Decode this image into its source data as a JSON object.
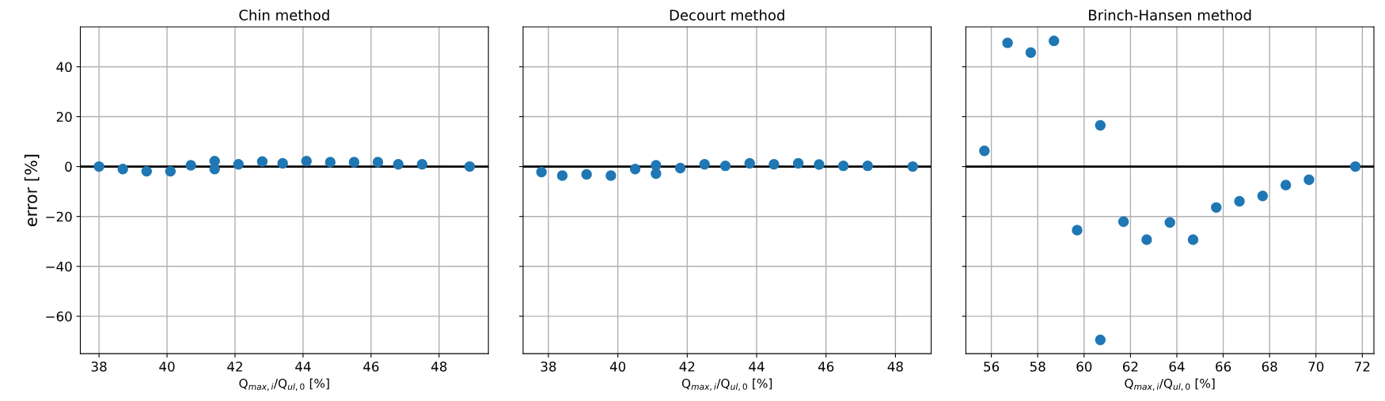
{
  "chart_data": [
    {
      "type": "scatter",
      "title": "Chin method",
      "xlabel": "Q$_{max,i}$/Q$_{ul,0}$ [%]",
      "ylabel": "error [%]",
      "x": [
        38.0,
        38.7,
        39.4,
        40.1,
        40.7,
        41.4,
        41.4,
        42.1,
        42.8,
        43.4,
        44.1,
        44.8,
        45.5,
        46.2,
        46.8,
        47.5,
        48.9
      ],
      "series": [
        {
          "color": "#1f77b4",
          "values": [
            0,
            -1.0,
            -1.9,
            -1.9,
            0.5,
            2.2,
            -1.0,
            0.9,
            2.0,
            1.3,
            2.2,
            1.8,
            1.8,
            1.8,
            0.9,
            0.9,
            0
          ]
        }
      ],
      "xlim": [
        37.45,
        49.45
      ],
      "xticks": [
        38,
        40,
        42,
        44,
        46,
        48
      ],
      "ylim": [
        -75,
        56
      ],
      "yticks": [
        -60,
        -40,
        -20,
        0,
        20,
        40
      ],
      "ref_lines": [
        {
          "axis": "y",
          "value": 0,
          "color": "#000000"
        }
      ],
      "grid": true,
      "marker": "circle"
    },
    {
      "type": "scatter",
      "title": "Decourt method",
      "xlabel": "Q$_{max,i}$/Q$_{ul,0}$ [%]",
      "x": [
        37.8,
        38.4,
        39.1,
        39.8,
        40.5,
        41.1,
        41.1,
        41.8,
        42.5,
        43.1,
        43.8,
        44.5,
        45.2,
        45.8,
        46.5,
        47.2,
        48.5
      ],
      "series": [
        {
          "color": "#1f77b4",
          "values": [
            -2.2,
            -3.6,
            -3.1,
            -3.6,
            -1.0,
            0.5,
            -2.8,
            -0.6,
            0.9,
            0.3,
            1.3,
            0.9,
            1.3,
            0.8,
            0.3,
            0.3,
            0
          ]
        }
      ],
      "xlim": [
        37.27,
        49.03
      ],
      "xticks": [
        38,
        40,
        42,
        44,
        46,
        48
      ],
      "ylim": [
        -75,
        56
      ],
      "yticks": [
        -60,
        -40,
        -20,
        0,
        20,
        40
      ],
      "tick_labels": "x",
      "ref_lines": [
        {
          "axis": "y",
          "value": 0,
          "color": "#000000"
        }
      ],
      "grid": true,
      "marker": "circle"
    },
    {
      "type": "scatter",
      "title": "Brinch-Hansen method",
      "xlabel": "Q$_{max,i}$/Q$_{ul,0}$ [%]",
      "x": [
        55.7,
        56.7,
        57.7,
        58.7,
        59.7,
        60.7,
        60.7,
        61.7,
        62.7,
        63.7,
        64.7,
        65.7,
        66.7,
        67.7,
        68.7,
        69.7,
        71.7
      ],
      "series": [
        {
          "color": "#1f77b4",
          "values": [
            6.3,
            49.6,
            45.7,
            50.4,
            -25.5,
            16.5,
            -69.5,
            -22.1,
            -29.3,
            -22.4,
            -29.3,
            -16.4,
            -13.9,
            -11.8,
            -7.4,
            -5.3,
            0
          ]
        }
      ],
      "xlim": [
        54.9,
        72.5
      ],
      "xticks": [
        56,
        58,
        60,
        62,
        64,
        66,
        68,
        70,
        72
      ],
      "ylim": [
        -75,
        56
      ],
      "yticks": [
        -60,
        -40,
        -20,
        0,
        20,
        40
      ],
      "tick_labels": "x",
      "ref_lines": [
        {
          "axis": "y",
          "value": 0,
          "color": "#000000"
        }
      ],
      "grid": true,
      "marker": "circle"
    }
  ]
}
